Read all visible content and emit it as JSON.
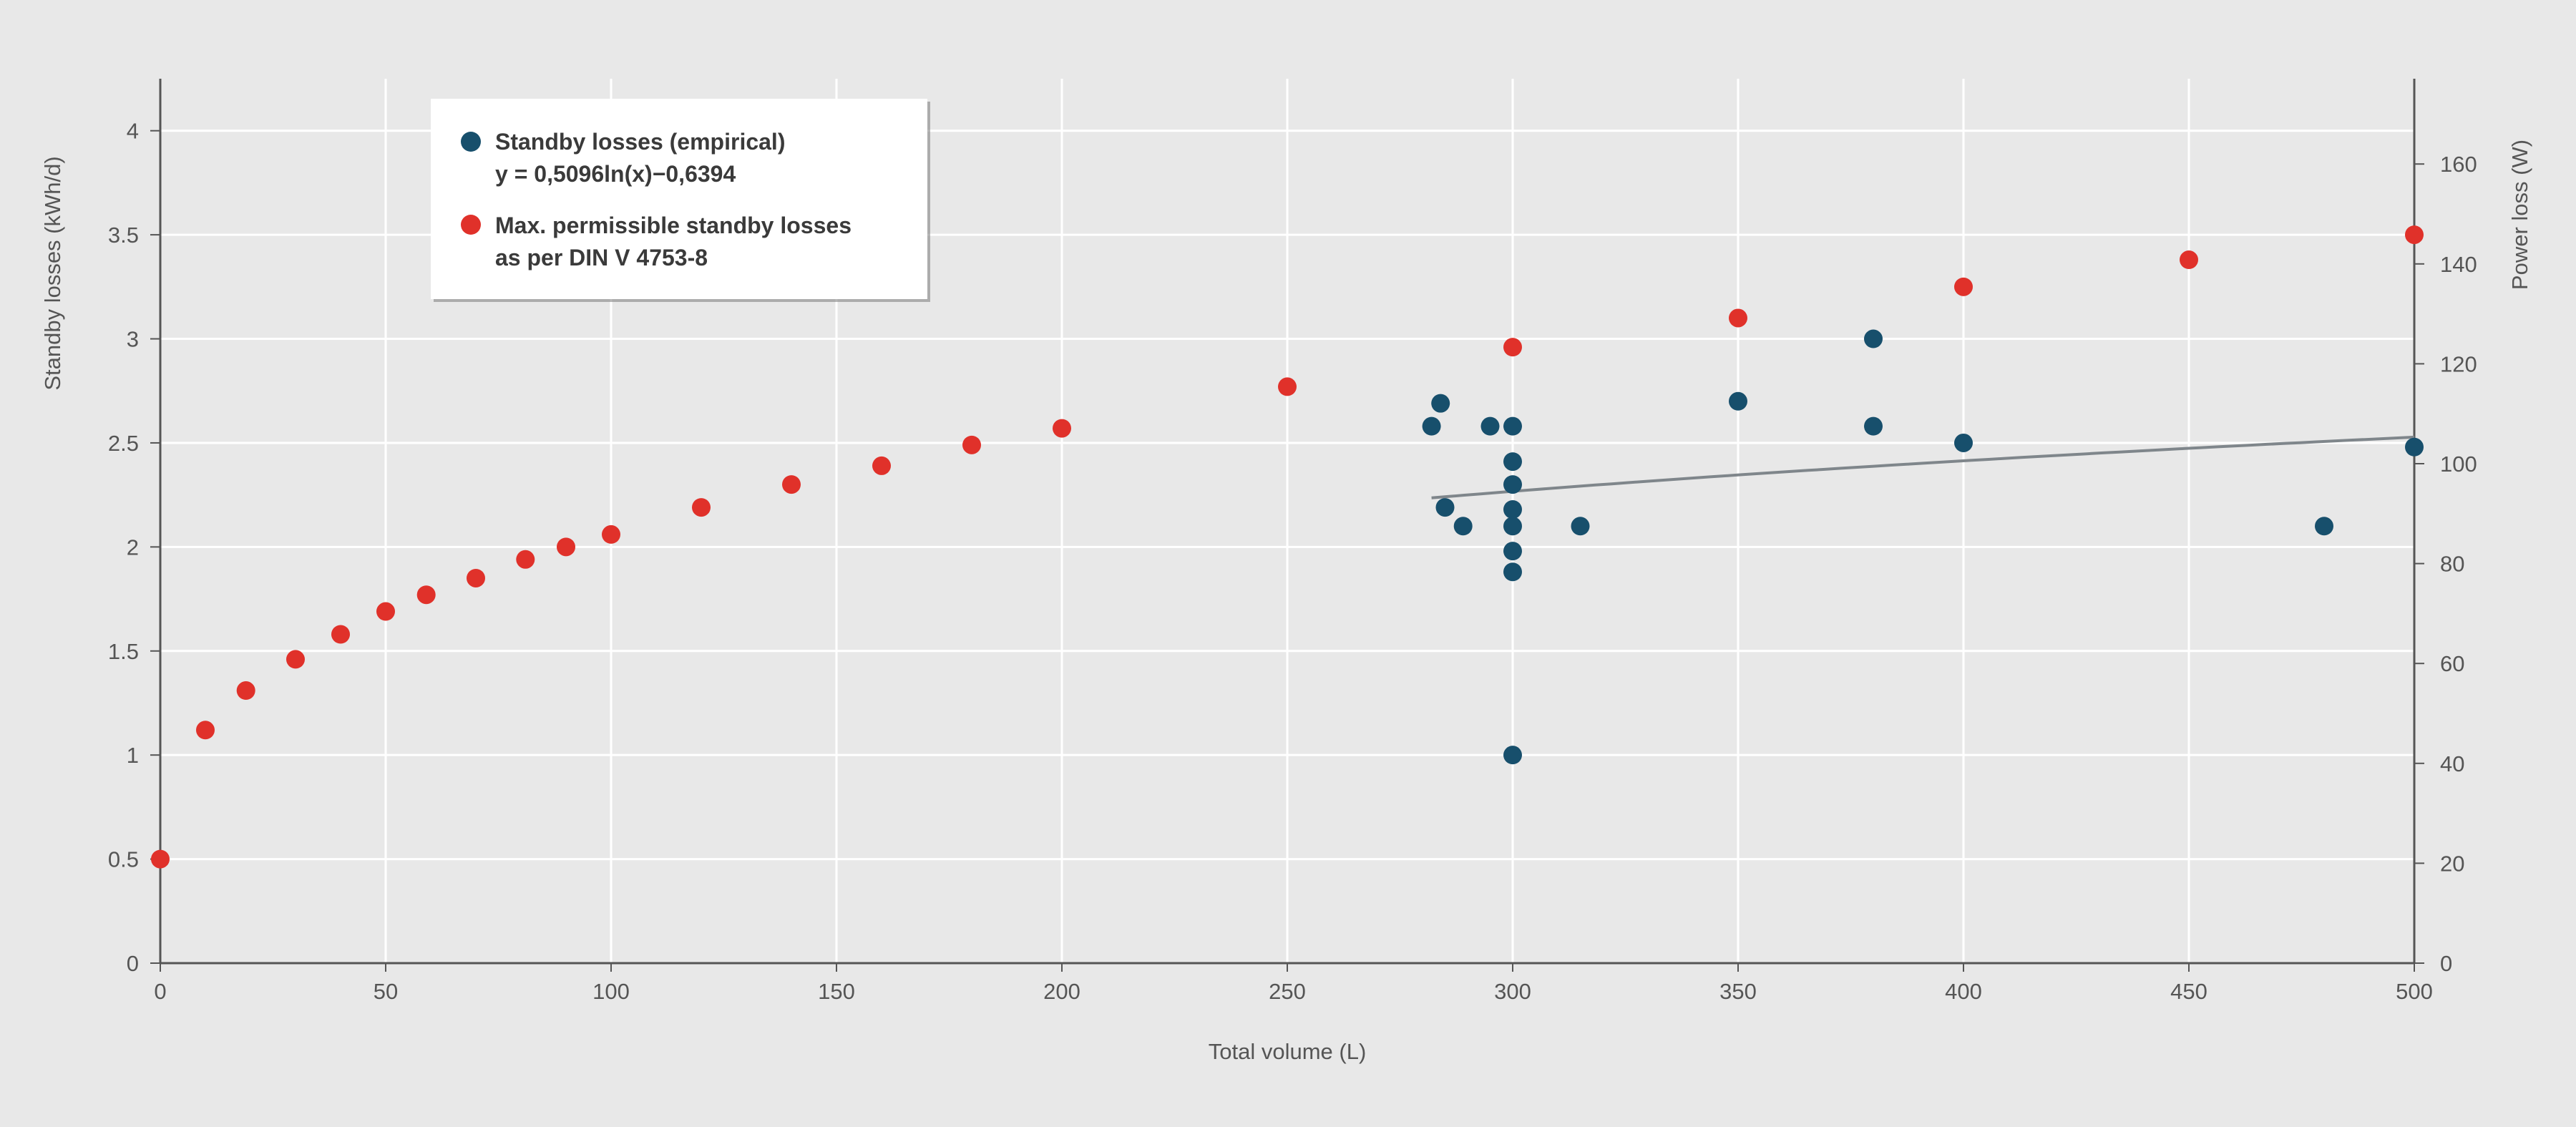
{
  "chart_data": {
    "type": "scatter",
    "xlabel": "Total volume (L)",
    "ylabel": "Standby losses (kWh/d)",
    "y2label": "Power loss (W)",
    "xlim": [
      0,
      500
    ],
    "ylim": [
      0,
      4.25
    ],
    "y2lim": [
      0,
      177.08
    ],
    "xticks": [
      "0",
      "50",
      "100",
      "150",
      "200",
      "250",
      "300",
      "350",
      "400",
      "450",
      "500"
    ],
    "yticks": [
      "0",
      "0.5",
      "1",
      "1.5",
      "2",
      "2.5",
      "3",
      "3.5",
      "4"
    ],
    "y2ticks": [
      "0",
      "20",
      "40",
      "60",
      "80",
      "100",
      "120",
      "140",
      "160"
    ],
    "grid": true,
    "legend_position": "top-left",
    "colors": {
      "empirical": "#174f6c",
      "max": "#e0312a",
      "trend": "#7f868b",
      "grid": "#ffffff",
      "axis": "#555555"
    },
    "legend": [
      {
        "series": "empirical",
        "lines": [
          "Standby losses (empirical)",
          "y = 0,5096ln(x)−0,6394"
        ]
      },
      {
        "series": "max",
        "lines": [
          "Max. permissible standby losses",
          "as per DIN V 4753-8"
        ]
      }
    ],
    "series": [
      {
        "name": "Max. permissible standby losses as per DIN V 4753-8",
        "key": "max",
        "points": [
          [
            0,
            0.5
          ],
          [
            10,
            1.12
          ],
          [
            19,
            1.31
          ],
          [
            30,
            1.46
          ],
          [
            40,
            1.58
          ],
          [
            50,
            1.69
          ],
          [
            59,
            1.77
          ],
          [
            70,
            1.85
          ],
          [
            81,
            1.94
          ],
          [
            90,
            2.0
          ],
          [
            100,
            2.06
          ],
          [
            120,
            2.19
          ],
          [
            140,
            2.3
          ],
          [
            160,
            2.39
          ],
          [
            180,
            2.49
          ],
          [
            200,
            2.57
          ],
          [
            250,
            2.77
          ],
          [
            300,
            2.96
          ],
          [
            350,
            3.1
          ],
          [
            400,
            3.25
          ],
          [
            450,
            3.38
          ],
          [
            500,
            3.5
          ]
        ]
      },
      {
        "name": "Standby losses (empirical)",
        "key": "empirical",
        "points": [
          [
            282,
            2.58
          ],
          [
            284,
            2.69
          ],
          [
            285,
            2.19
          ],
          [
            289,
            2.1
          ],
          [
            295,
            2.58
          ],
          [
            300,
            2.58
          ],
          [
            300,
            2.41
          ],
          [
            300,
            2.3
          ],
          [
            300,
            2.18
          ],
          [
            300,
            2.1
          ],
          [
            300,
            1.98
          ],
          [
            300,
            1.88
          ],
          [
            300,
            1.0
          ],
          [
            315,
            2.1
          ],
          [
            350,
            2.7
          ],
          [
            380,
            3.0
          ],
          [
            380,
            2.58
          ],
          [
            400,
            2.5
          ],
          [
            480,
            2.1
          ],
          [
            500,
            2.48
          ]
        ]
      }
    ],
    "trendline": {
      "name": "y = 0,5096ln(x)−0,6394",
      "a": 0.5096,
      "b": -0.6394,
      "x_range": [
        282,
        500
      ]
    }
  }
}
